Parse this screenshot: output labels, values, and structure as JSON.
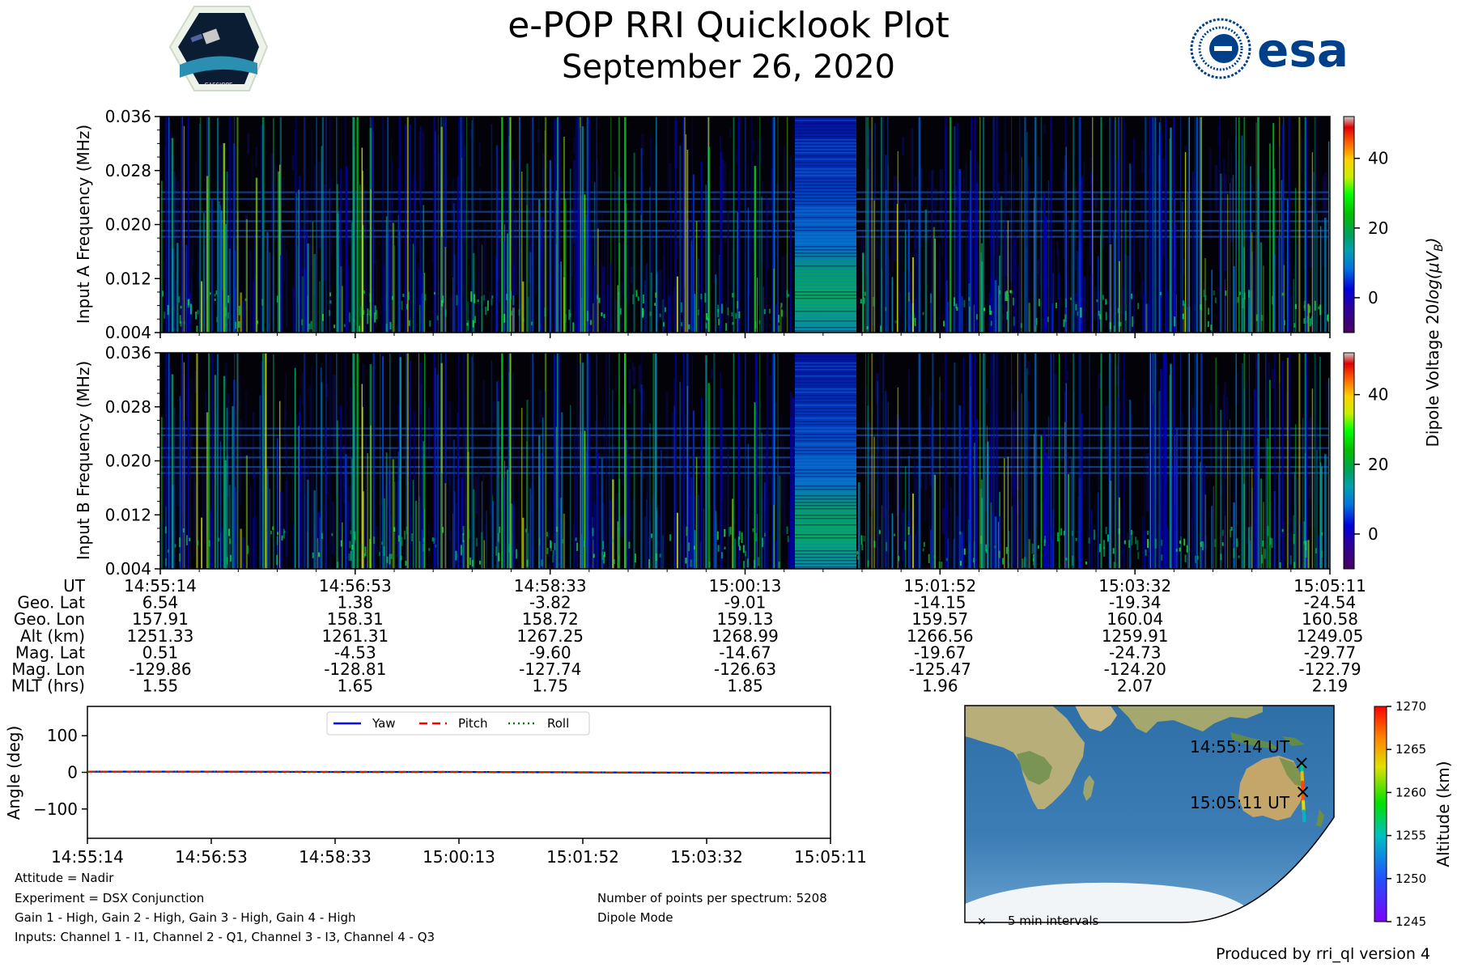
{
  "header": {
    "title": "e-POP RRI Quicklook Plot",
    "date": "September 26, 2020",
    "left_logo_text": "CASSIOPE",
    "right_logo_text": "esa"
  },
  "colors": {
    "yaw": "#0000ff",
    "pitch": "#ff0000",
    "roll": "#008000"
  },
  "chart_data": [
    {
      "type": "heatmap",
      "name": "input-a-spectrogram",
      "ylabel": "Input A Frequency (MHz)",
      "yticks": [
        "0.036",
        "0.028",
        "0.020",
        "0.012",
        "0.004"
      ],
      "ylim": [
        0.004,
        0.036
      ],
      "colormap": "nipy_spectral",
      "calibration_segment": "≈15:00:13 to ≈15:01:05",
      "horizontal_bands_mhz": [
        0.0248,
        0.0238,
        0.0219,
        0.0205,
        0.0191,
        0.0182
      ]
    },
    {
      "type": "heatmap",
      "name": "input-b-spectrogram",
      "ylabel": "Input B Frequency (MHz)",
      "yticks": [
        "0.036",
        "0.028",
        "0.020",
        "0.012",
        "0.004"
      ],
      "ylim": [
        0.004,
        0.036
      ],
      "colormap": "nipy_spectral",
      "calibration_segment": "≈15:00:13 to ≈15:01:05",
      "horizontal_bands_mhz": [
        0.0248,
        0.0238,
        0.0219,
        0.0205,
        0.0191,
        0.0182
      ]
    },
    {
      "type": "colorbar",
      "label": "Dipole Voltage 20log(μV_B)",
      "label_main": "Dipole Voltage 20",
      "label_func": "log(",
      "label_mu": "μV",
      "label_sub": "B",
      "label_close": ")",
      "range": [
        -10,
        52
      ],
      "ticks": [
        0,
        20,
        40
      ]
    },
    {
      "type": "table",
      "name": "ephemeris",
      "row_labels": [
        "UT",
        "Geo. Lat",
        "Geo. Lon",
        "Alt (km)",
        "Mag. Lat",
        "Mag. Lon",
        "MLT (hrs)"
      ],
      "columns": [
        [
          "14:55:14",
          "6.54",
          "157.91",
          "1251.33",
          "0.51",
          "-129.86",
          "1.55"
        ],
        [
          "14:56:53",
          "1.38",
          "158.31",
          "1261.31",
          "-4.53",
          "-128.81",
          "1.65"
        ],
        [
          "14:58:33",
          "-3.82",
          "158.72",
          "1267.25",
          "-9.60",
          "-127.74",
          "1.75"
        ],
        [
          "15:00:13",
          "-9.01",
          "159.13",
          "1268.99",
          "-14.67",
          "-126.63",
          "1.85"
        ],
        [
          "15:01:52",
          "-14.15",
          "159.57",
          "1266.56",
          "-19.67",
          "-125.47",
          "1.96"
        ],
        [
          "15:03:32",
          "-19.34",
          "160.04",
          "1259.91",
          "-24.73",
          "-124.20",
          "2.07"
        ],
        [
          "15:05:11",
          "-24.54",
          "160.58",
          "1249.05",
          "-29.77",
          "-122.79",
          "2.19"
        ]
      ]
    },
    {
      "type": "line",
      "name": "attitude",
      "ylabel": "Angle (deg)",
      "ylim": [
        -180,
        180
      ],
      "yticks": [
        "100",
        "0",
        "−100"
      ],
      "ytick_values": [
        100,
        0,
        -100
      ],
      "x": [
        "14:55:14",
        "14:56:53",
        "14:58:33",
        "15:00:13",
        "15:01:52",
        "15:03:32",
        "15:05:11"
      ],
      "series": [
        {
          "name": "Yaw",
          "values": [
            2,
            2,
            1,
            1,
            0,
            -1,
            -1
          ]
        },
        {
          "name": "Pitch",
          "values": [
            2,
            2,
            1,
            1,
            0,
            -1,
            -1
          ]
        },
        {
          "name": "Roll",
          "values": [
            2,
            2,
            1,
            1,
            0,
            -1,
            -1
          ]
        }
      ]
    },
    {
      "type": "scatter",
      "name": "orbit-map",
      "start_label": "14:55:14 UT",
      "end_label": "15:05:11 UT",
      "legend": "5 min intervals",
      "colorbar_label": "Altitude (km)",
      "colorbar_ticks": [
        "1270",
        "1265",
        "1260",
        "1255",
        "1250",
        "1245"
      ],
      "colorbar_tick_values": [
        1270,
        1265,
        1260,
        1255,
        1250,
        1245
      ],
      "colorbar_range": [
        1245,
        1270
      ],
      "track": [
        {
          "lat": 6.54,
          "lon": 157.91,
          "alt": 1251.33
        },
        {
          "lat": 1.38,
          "lon": 158.31,
          "alt": 1261.31
        },
        {
          "lat": -3.82,
          "lon": 158.72,
          "alt": 1267.25
        },
        {
          "lat": -9.01,
          "lon": 159.13,
          "alt": 1268.99
        },
        {
          "lat": -14.15,
          "lon": 159.57,
          "alt": 1266.56
        },
        {
          "lat": -19.34,
          "lon": 160.04,
          "alt": 1259.91
        },
        {
          "lat": -24.54,
          "lon": 160.58,
          "alt": 1249.05
        }
      ]
    }
  ],
  "footer": {
    "attitude": "Attitude = Nadir",
    "experiment": "Experiment = DSX Conjunction",
    "gains": "Gain 1 - High, Gain 2 - High, Gain 3 - High, Gain 4 - High",
    "inputs": "Inputs: Channel 1 - I1, Channel 2 - Q1, Channel 3 - I3, Channel 4 - Q3",
    "points": "Number of points per spectrum: 5208",
    "mode": "Dipole Mode",
    "produced_by": "Produced by rri_ql version 4"
  }
}
